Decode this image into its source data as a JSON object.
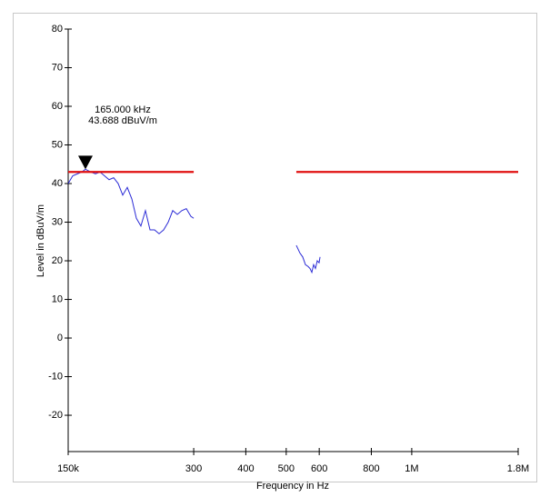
{
  "chart_data": {
    "type": "line",
    "x_label": "Frequency in Hz",
    "y_label": "Level in dBuV/m",
    "xscale": "log",
    "xlim": [
      150000,
      1800000
    ],
    "ylim": [
      -29.4,
      80
    ],
    "xticks": [
      {
        "value": 150000,
        "label": "150k"
      },
      {
        "value": 300000,
        "label": "300"
      },
      {
        "value": 400000,
        "label": "400"
      },
      {
        "value": 500000,
        "label": "500"
      },
      {
        "value": 600000,
        "label": "600"
      },
      {
        "value": 800000,
        "label": "800"
      },
      {
        "value": 1000000,
        "label": "1M"
      },
      {
        "value": 1800000,
        "label": "1.8M"
      }
    ],
    "yticks": [
      -20,
      -10,
      0,
      10,
      20,
      30,
      40,
      50,
      60,
      70,
      80
    ],
    "series": [
      {
        "color": "#2b2bd6",
        "x": [
          150000,
          153800,
          157700,
          161700,
          165000,
          170000,
          174400,
          178800,
          183300,
          188000,
          192800,
          197700,
          202700,
          207900,
          213200,
          218600,
          224100,
          229800,
          235700,
          241700,
          247800,
          254100,
          260600,
          267200,
          274000,
          281000,
          288000,
          295400,
          300000
        ],
        "values": [
          40,
          42,
          42.5,
          43,
          43.7,
          43,
          42.5,
          43,
          42,
          41,
          41.5,
          40,
          37,
          39,
          36,
          31,
          29,
          33,
          28,
          28,
          27,
          28,
          30,
          33,
          32,
          33,
          33.5,
          31.5,
          31
        ]
      },
      {
        "color": "#2b2bd6",
        "x": [
          528700,
          539400,
          547700,
          556000,
          564500,
          570200,
          576000,
          581700,
          587600,
          593500,
          599500,
          602700
        ],
        "values": [
          24,
          22,
          21,
          19,
          18.5,
          18,
          17,
          19,
          18,
          20,
          19.5,
          21
        ]
      },
      {
        "color": "#e01010",
        "width": 2.2,
        "x": [
          150000,
          300000
        ],
        "values": [
          43,
          43
        ]
      },
      {
        "color": "#e01010",
        "width": 2.2,
        "x": [
          528700,
          1800000
        ],
        "values": [
          43,
          43
        ]
      }
    ],
    "marker": {
      "x": 165000,
      "value": 43.688,
      "labels": [
        "165.000 kHz",
        "43.688 dBuV/m"
      ]
    }
  }
}
